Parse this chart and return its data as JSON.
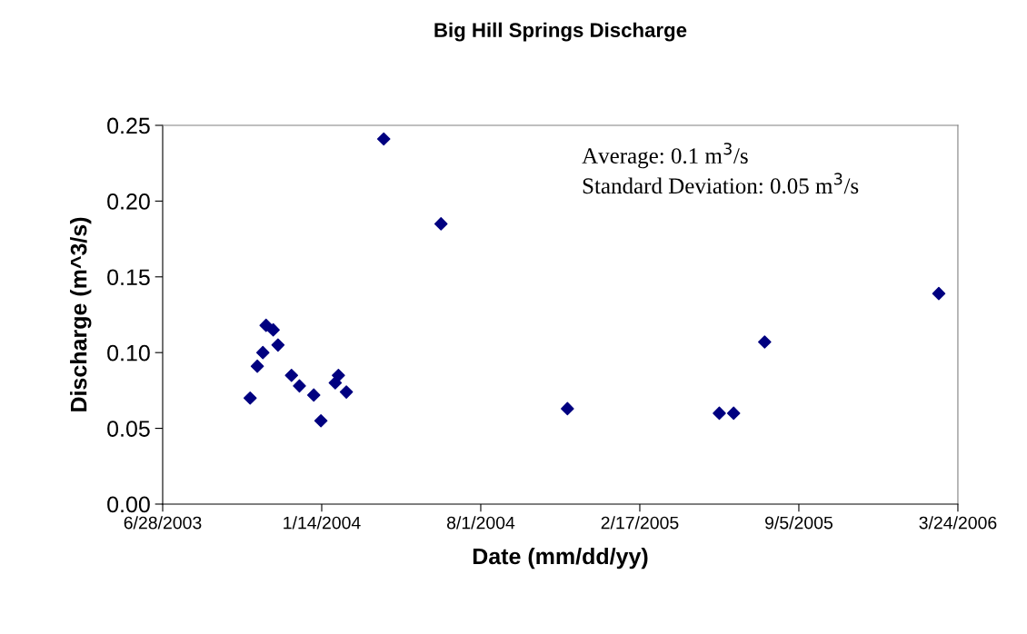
{
  "chart_data": {
    "type": "scatter",
    "title": "Big Hill Springs Discharge",
    "xlabel": "Date (mm/dd/yy)",
    "ylabel": "Discharge (m^3/s)",
    "annotations": [
      "Average: 0.1 m$^{3}$/s",
      "Standard Deviation: 0.05 m$^{3}$/s"
    ],
    "x": [
      "2003-10-16",
      "2003-10-25",
      "2003-11-01",
      "2003-11-05",
      "2003-11-14",
      "2003-11-20",
      "2003-12-07",
      "2003-12-17",
      "2004-01-04",
      "2004-01-13",
      "2004-01-31",
      "2004-02-04",
      "2004-02-14",
      "2004-04-01",
      "2004-06-12",
      "2004-11-18",
      "2005-05-28",
      "2005-06-15",
      "2005-07-24",
      "2006-02-28"
    ],
    "series": [
      {
        "color": "#000080",
        "values": [
          0.07,
          0.091,
          0.1,
          0.118,
          0.115,
          0.105,
          0.085,
          0.078,
          0.072,
          0.055,
          0.08,
          0.085,
          0.074,
          0.241,
          0.185,
          0.063,
          0.06,
          0.06,
          0.107,
          0.139
        ]
      }
    ],
    "marker": "diamond",
    "grid": false,
    "xlim": [
      "2003-06-28",
      "2006-03-24"
    ],
    "xticks": [
      {
        "value": "2003-06-28",
        "label": "6/28/2003"
      },
      {
        "value": "2004-01-14",
        "label": "1/14/2004"
      },
      {
        "value": "2004-08-01",
        "label": "8/1/2004"
      },
      {
        "value": "2005-02-17",
        "label": "2/17/2005"
      },
      {
        "value": "2005-09-05",
        "label": "9/5/2005"
      },
      {
        "value": "2006-03-24",
        "label": "3/24/2006"
      }
    ],
    "ylim": [
      0,
      0.25
    ],
    "yticks": [
      {
        "value": 0,
        "label": "0.00"
      },
      {
        "value": 0.05,
        "label": "0.05"
      },
      {
        "value": 0.1,
        "label": "0.10"
      },
      {
        "value": 0.15,
        "label": "0.15"
      },
      {
        "value": 0.2,
        "label": "0.20"
      },
      {
        "value": 0.25,
        "label": "0.25"
      }
    ]
  }
}
